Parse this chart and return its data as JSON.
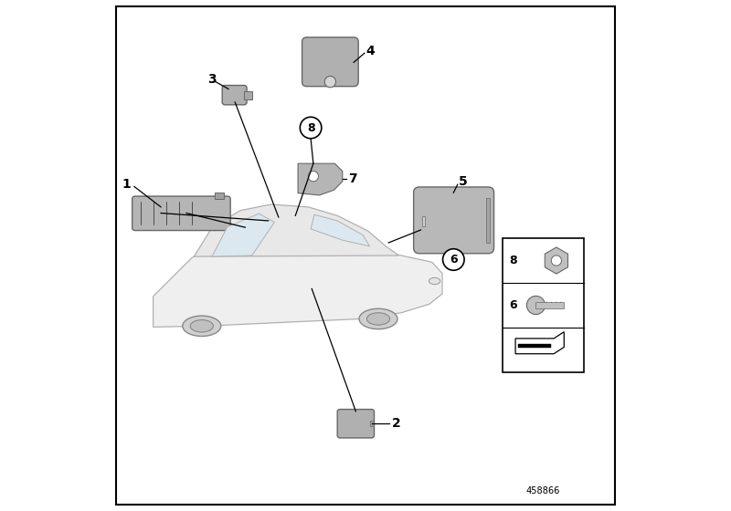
{
  "bg_color": "#ffffff",
  "fig_width": 8.0,
  "fig_height": 5.6,
  "dpi": 100,
  "catalog_number": "458866",
  "part_color": "#b8b8b8",
  "part_edge": "#666666",
  "car_face": "#f0f0f0",
  "car_edge": "#aaaaaa"
}
